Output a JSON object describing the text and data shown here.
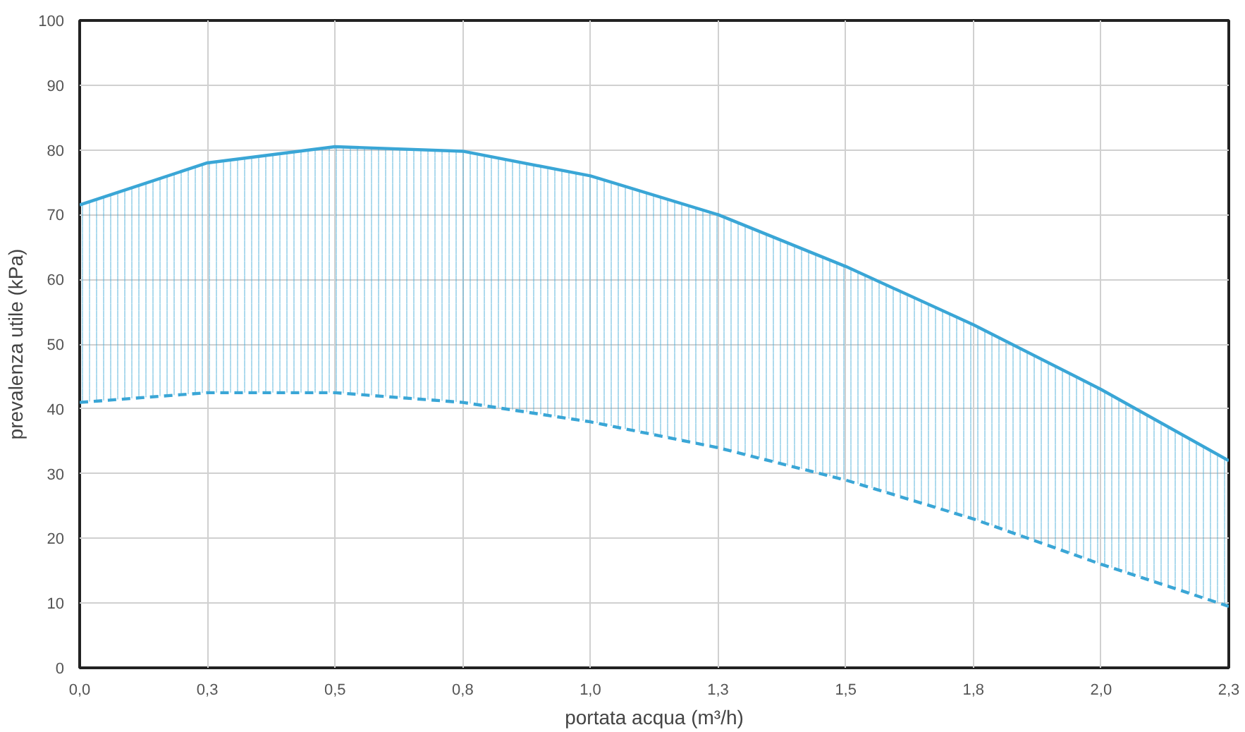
{
  "chart_data": {
    "type": "line",
    "xlabel": "portata acqua (m³/h)",
    "ylabel": "prevalenza utile (kPa)",
    "x": [
      0,
      0.25,
      0.5,
      0.75,
      1.0,
      1.25,
      1.5,
      1.75,
      2.0,
      2.25
    ],
    "xlim": [
      0,
      2.25
    ],
    "xticks": [
      {
        "value": 0,
        "label": "0,0"
      },
      {
        "value": 0.25,
        "label": "0,3"
      },
      {
        "value": 0.5,
        "label": "0,5"
      },
      {
        "value": 0.75,
        "label": "0,8"
      },
      {
        "value": 1.0,
        "label": "1,0"
      },
      {
        "value": 1.25,
        "label": "1,3"
      },
      {
        "value": 1.5,
        "label": "1,5"
      },
      {
        "value": 1.75,
        "label": "1,8"
      },
      {
        "value": 2.0,
        "label": "2,0"
      },
      {
        "value": 2.25,
        "label": "2,3"
      }
    ],
    "ylim": [
      0,
      100
    ],
    "yticks": [
      0,
      10,
      20,
      30,
      40,
      50,
      60,
      70,
      80,
      90,
      100
    ],
    "grid": true,
    "marker": "none",
    "series": [
      {
        "color": "#3aa6d6",
        "line_style": "solid",
        "values": [
          71.5,
          78,
          80.5,
          79.8,
          76,
          70,
          62,
          53,
          43,
          32
        ],
        "lower": [
          41,
          42.5,
          42.5,
          41,
          38,
          34,
          29,
          23,
          16,
          9.5
        ],
        "upper": [
          71.5,
          78,
          80.5,
          79.8,
          76,
          70,
          62,
          53,
          43,
          32
        ]
      },
      {
        "color": "#3aa6d6",
        "line_style": "dashed",
        "values": [
          41,
          42.5,
          42.5,
          41,
          38,
          34,
          29,
          23,
          16,
          9.5
        ]
      }
    ]
  }
}
